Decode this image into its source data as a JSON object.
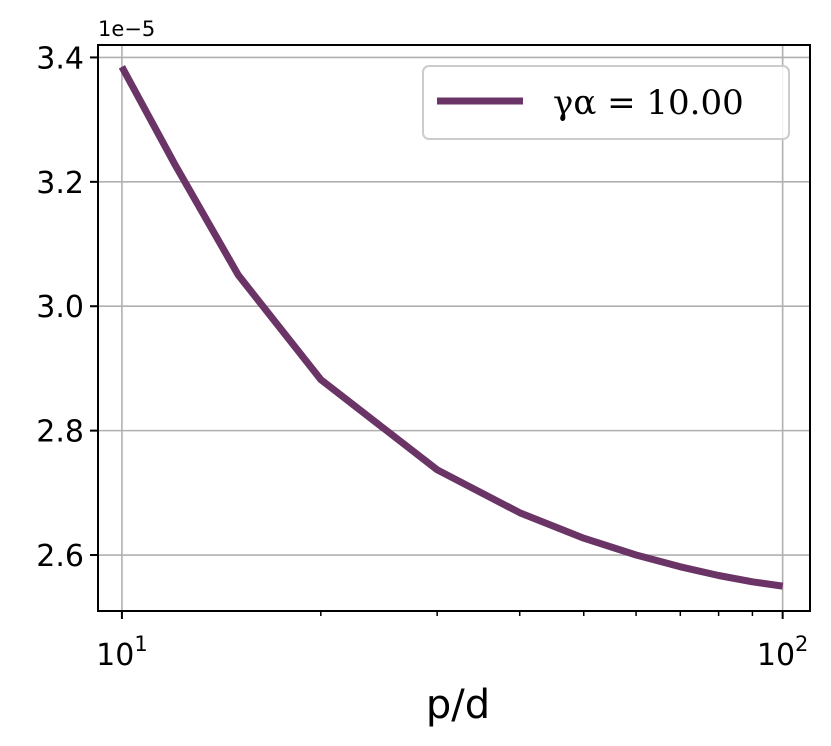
{
  "chart_data": {
    "type": "line",
    "xscale": "log",
    "xlabel": "p/d",
    "ylabel": "",
    "y_offset_label": "1e−5",
    "xlim": [
      9.2,
      110
    ],
    "ylim": [
      2.51,
      3.42
    ],
    "x_ticks": [
      {
        "value": 10,
        "base": "10",
        "exp": "1"
      },
      {
        "value": 100,
        "base": "10",
        "exp": "2"
      }
    ],
    "y_ticks": [
      {
        "value": 2.6,
        "label": "2.6"
      },
      {
        "value": 2.8,
        "label": "2.8"
      },
      {
        "value": 3.0,
        "label": "3.0"
      },
      {
        "value": 3.2,
        "label": "3.2"
      },
      {
        "value": 3.4,
        "label": "3.4"
      }
    ],
    "grid": true,
    "legend_position": "upper-right",
    "series": [
      {
        "name": "γα = 10.00",
        "color": "#6b3466",
        "x": [
          10,
          12,
          15,
          20,
          30,
          40,
          50,
          60,
          70,
          80,
          90,
          100
        ],
        "y": [
          3.385,
          3.23,
          3.05,
          2.882,
          2.737,
          2.668,
          2.627,
          2.6,
          2.581,
          2.567,
          2.557,
          2.55
        ]
      }
    ]
  }
}
